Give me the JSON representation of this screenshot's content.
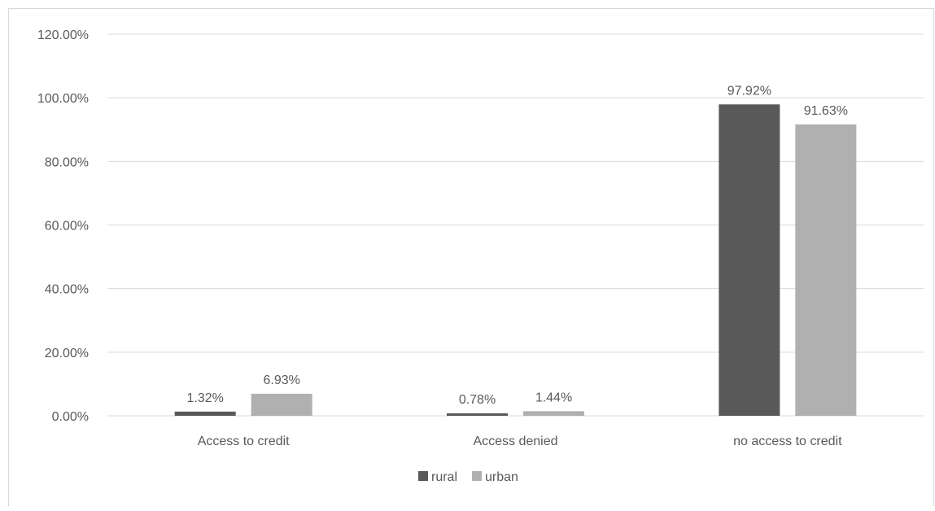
{
  "chart_data": {
    "type": "bar",
    "title": "",
    "xlabel": "",
    "ylabel": "",
    "categories": [
      "Access to credit",
      "Access denied",
      "no access to credit"
    ],
    "series": [
      {
        "name": "rural",
        "color": "#595959",
        "values": [
          1.32,
          0.78,
          97.92
        ],
        "labels": [
          "1.32%",
          "0.78%",
          "97.92%"
        ]
      },
      {
        "name": "urban",
        "color": "#b0b0b0",
        "values": [
          6.93,
          1.44,
          91.63
        ],
        "labels": [
          "6.93%",
          "1.44%",
          "91.63%"
        ]
      }
    ],
    "ylim": [
      0,
      120
    ],
    "yticks": [
      0,
      20,
      40,
      60,
      80,
      100,
      120
    ],
    "ytick_labels": [
      "0.00%",
      "20.00%",
      "40.00%",
      "60.00%",
      "80.00%",
      "100.00%",
      "120.00%"
    ],
    "grid": true,
    "gridline_color": "#d9d9d9",
    "legend_position": "bottom"
  }
}
